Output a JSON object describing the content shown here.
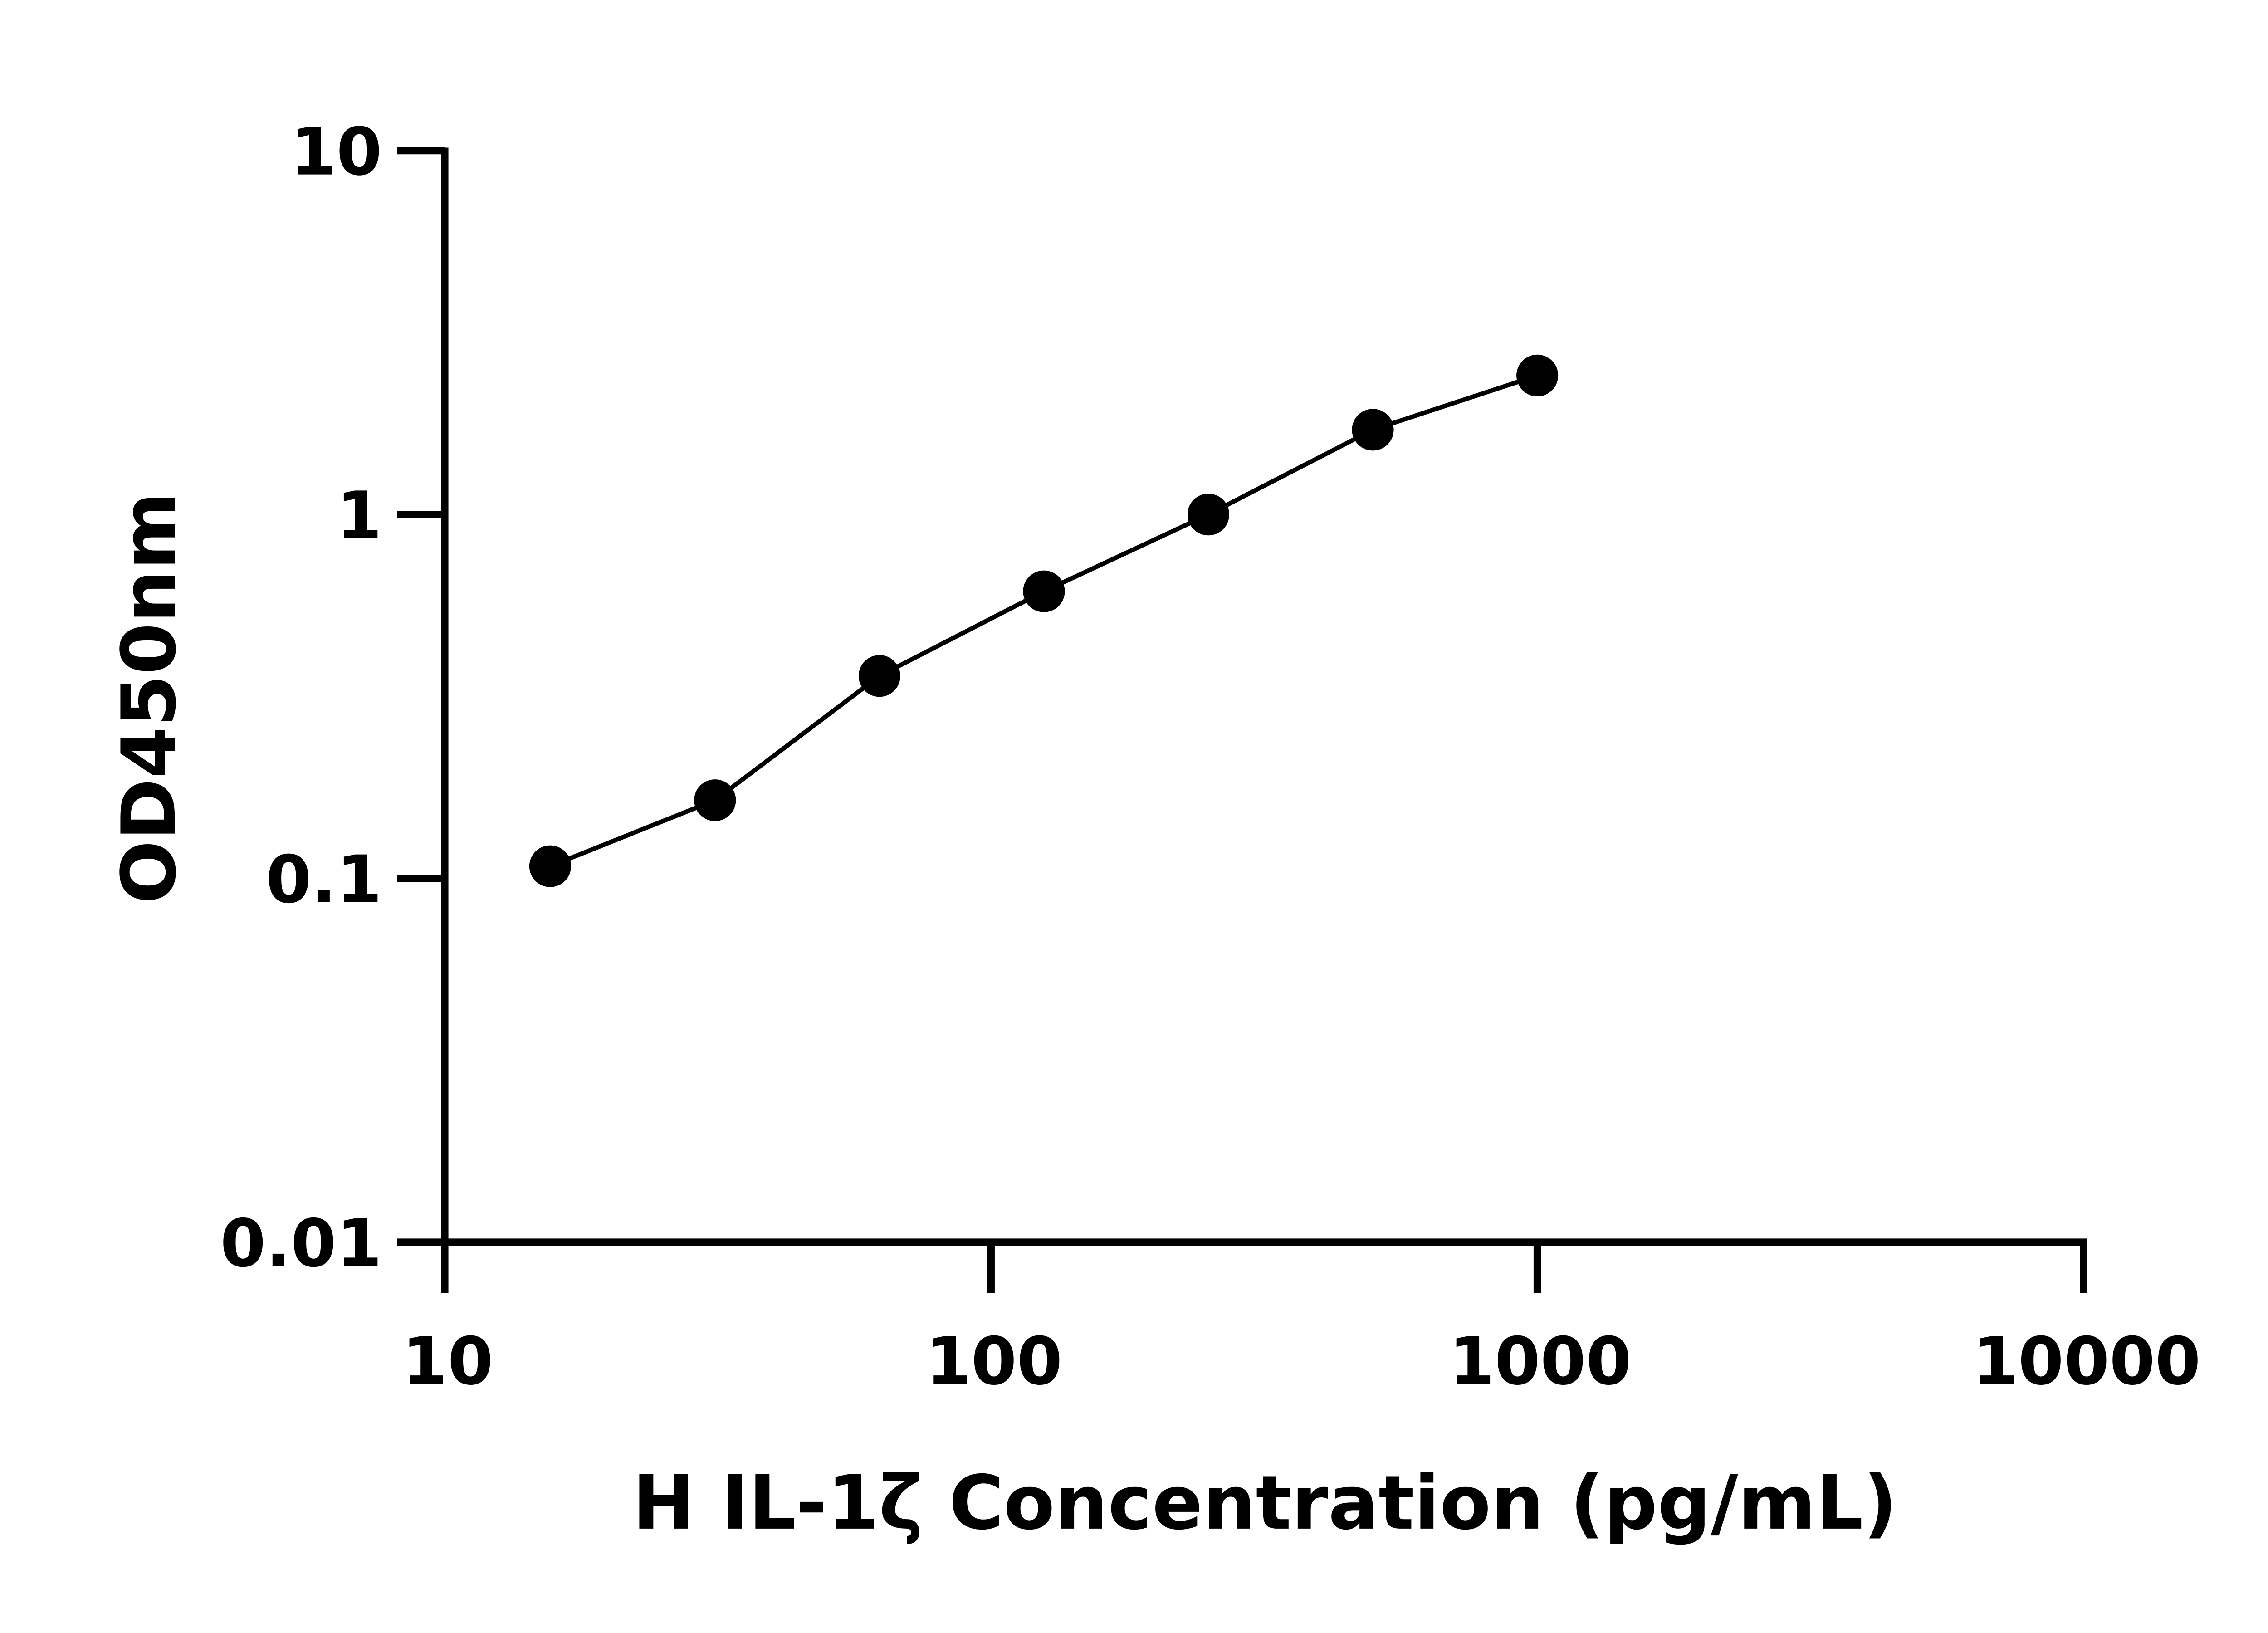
{
  "chart_data": {
    "type": "line",
    "title": "",
    "xlabel": "H IL-1ζ Concentration (pg/mL)",
    "ylabel": "OD450nm",
    "x_scale": "log",
    "y_scale": "log",
    "xlim": [
      10,
      10000
    ],
    "ylim": [
      0.01,
      10
    ],
    "x_ticks": [
      "10",
      "100",
      "1000",
      "10000"
    ],
    "y_ticks": [
      "0.01",
      "0.1",
      "1",
      "10"
    ],
    "grid": false,
    "series": [
      {
        "x": [
          15.6,
          31.25,
          62.5,
          125,
          250,
          500,
          1000
        ],
        "y": [
          0.108,
          0.164,
          0.36,
          0.615,
          1.0,
          1.71,
          2.41
        ],
        "color": "#000000",
        "marker": "circle"
      }
    ]
  }
}
